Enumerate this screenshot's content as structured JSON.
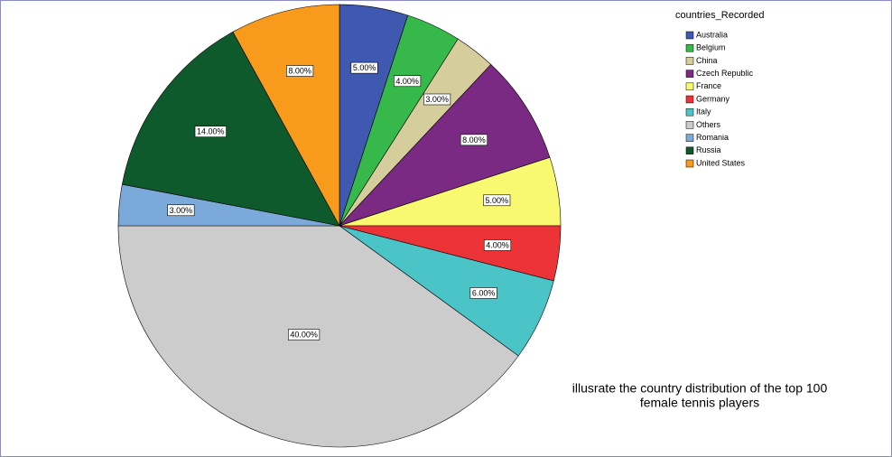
{
  "chart_data": {
    "type": "pie",
    "legend_title": "countries_Recorded",
    "categories": [
      "Australia",
      "Belgium",
      "China",
      "Czech Republic",
      "France",
      "Germany",
      "Italy",
      "Others",
      "Romania",
      "Russia",
      "United States"
    ],
    "values": [
      5,
      4,
      3,
      8,
      5,
      4,
      6,
      40,
      3,
      14,
      8
    ],
    "value_labels": [
      "5.00%",
      "4.00%",
      "3.00%",
      "8.00%",
      "5.00%",
      "4.00%",
      "6.00%",
      "40.00%",
      "3.00%",
      "14.00%",
      "8.00%"
    ],
    "colors": [
      "#3f58b0",
      "#36b94a",
      "#d6cd9c",
      "#7b2a84",
      "#f9f871",
      "#ec3338",
      "#4bc4c8",
      "#cccccc",
      "#7ba9d9",
      "#0f5a2c",
      "#f89a1c"
    ],
    "legend": "top-right",
    "annotation": [
      "illusrate the country distribution of the top 100",
      "female tennis players"
    ]
  }
}
